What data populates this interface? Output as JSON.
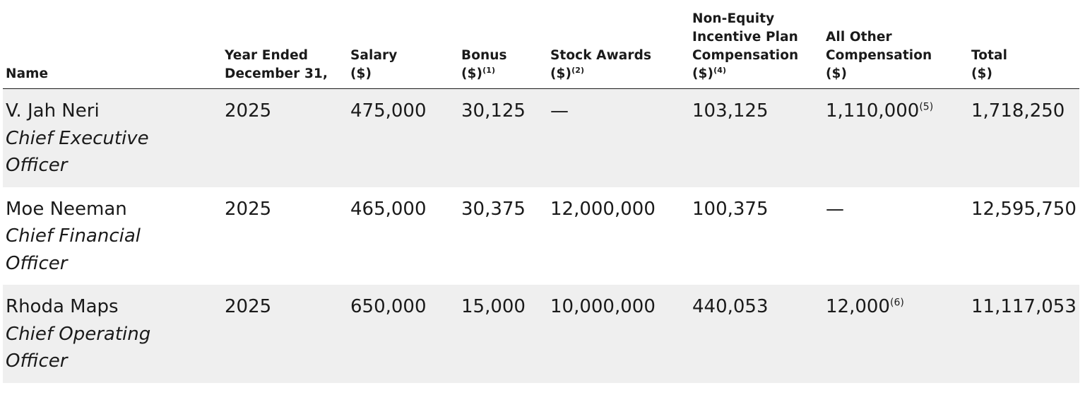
{
  "table": {
    "headers": {
      "name": [
        "Name"
      ],
      "year": [
        "Year Ended",
        "December 31,"
      ],
      "salary": [
        "Salary",
        "($)"
      ],
      "bonus": [
        "Bonus",
        "($)"
      ],
      "bonus_note": "(1)",
      "stock": [
        "Stock Awards",
        "($)"
      ],
      "stock_note": "(2)",
      "neip": [
        "Non-Equity",
        "Incentive Plan",
        "Compensation",
        "($)"
      ],
      "neip_note": "(4)",
      "other": [
        "All Other",
        "Compensation",
        "($)"
      ],
      "total": [
        "Total",
        "($)"
      ]
    },
    "rows": [
      {
        "name": "V. Jah Neri",
        "title": "Chief Executive Officer",
        "year": "2025",
        "salary": "475,000",
        "bonus": "30,125",
        "stock": "—",
        "neip": "103,125",
        "other": "1,110,000",
        "other_note": "(5)",
        "total": "1,718,250",
        "shaded": true
      },
      {
        "name": "Moe Neeman",
        "title": "Chief Financial Officer",
        "year": "2025",
        "salary": "465,000",
        "bonus": "30,375",
        "stock": "12,000,000",
        "neip": "100,375",
        "other": "—",
        "other_note": "",
        "total": "12,595,750",
        "shaded": false
      },
      {
        "name": "Rhoda Maps",
        "title": "Chief Operating Officer",
        "year": "2025",
        "salary": "650,000",
        "bonus": "15,000",
        "stock": "10,000,000",
        "neip": "440,053",
        "other": "12,000",
        "other_note": "(6)",
        "total": "11,117,053",
        "shaded": true
      }
    ]
  }
}
